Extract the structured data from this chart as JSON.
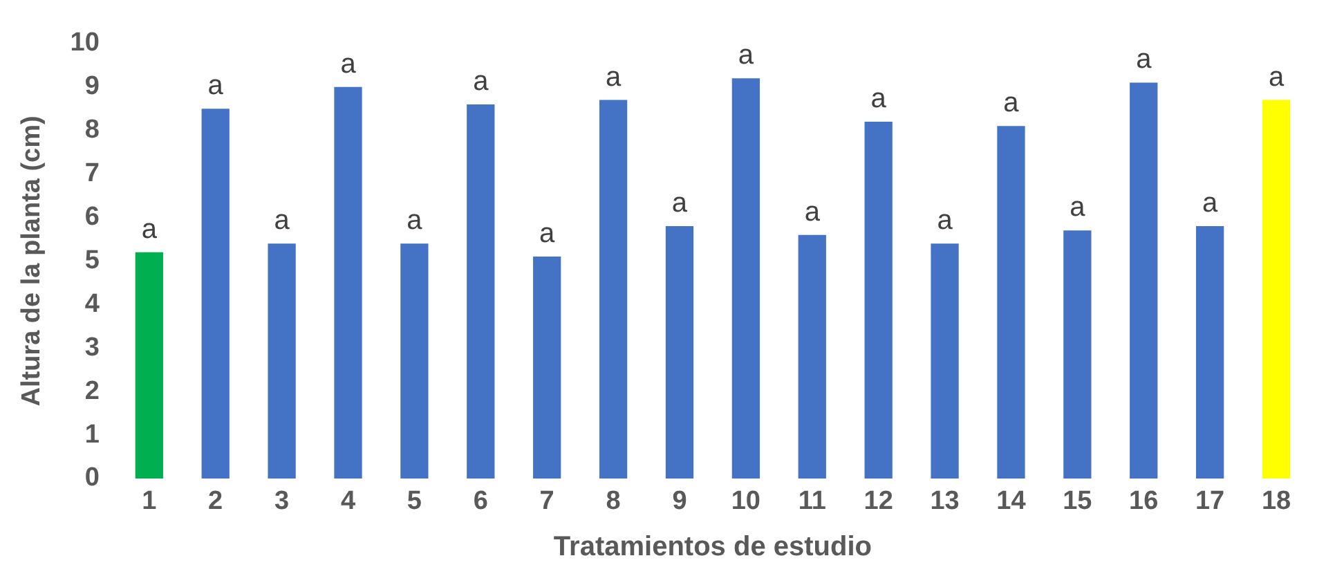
{
  "chart_data": {
    "type": "bar",
    "xlabel": "Tratamientos de estudio",
    "ylabel": "Altura de la planta (cm)",
    "categories": [
      "1",
      "2",
      "3",
      "4",
      "5",
      "6",
      "7",
      "8",
      "9",
      "10",
      "11",
      "12",
      "13",
      "14",
      "15",
      "16",
      "17",
      "18"
    ],
    "values": [
      5.2,
      8.5,
      5.4,
      9.0,
      5.4,
      8.6,
      5.1,
      8.7,
      5.8,
      9.2,
      5.6,
      8.2,
      5.4,
      8.1,
      5.7,
      9.1,
      5.8,
      8.7
    ],
    "colors": [
      "#00b050",
      "#4472c4",
      "#4472c4",
      "#4472c4",
      "#4472c4",
      "#4472c4",
      "#4472c4",
      "#4472c4",
      "#4472c4",
      "#4472c4",
      "#4472c4",
      "#4472c4",
      "#4472c4",
      "#4472c4",
      "#4472c4",
      "#4472c4",
      "#4472c4",
      "#ffff00"
    ],
    "value_labels": [
      "a",
      "a",
      "a",
      "a",
      "a",
      "a",
      "a",
      "a",
      "a",
      "a",
      "a",
      "a",
      "a",
      "a",
      "a",
      "a",
      "a",
      "a"
    ],
    "ylim": [
      0,
      10
    ],
    "yticks": [
      0,
      1,
      2,
      3,
      4,
      5,
      6,
      7,
      8,
      9,
      10
    ],
    "grid": false,
    "legend": false
  }
}
